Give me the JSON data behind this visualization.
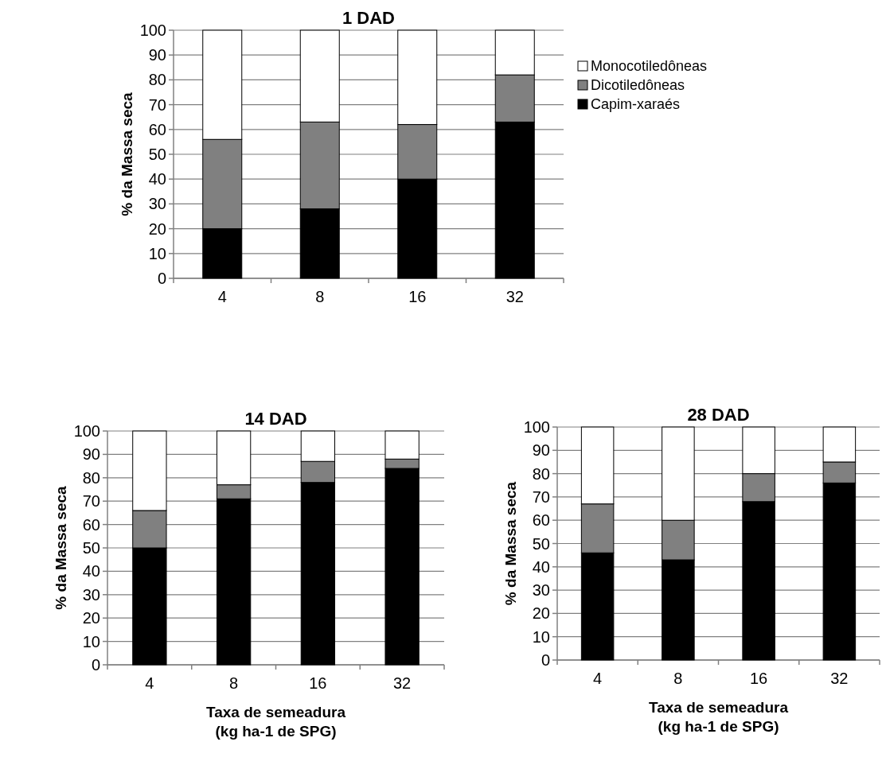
{
  "chart_data": [
    {
      "type": "bar",
      "stacked": true,
      "title": "1 DAD",
      "ylabel": "% da Massa seca",
      "categories": [
        "4",
        "8",
        "16",
        "32"
      ],
      "ylim": [
        0,
        100
      ],
      "yticks": [
        0,
        10,
        20,
        30,
        40,
        50,
        60,
        70,
        80,
        90,
        100
      ],
      "grid": "y",
      "legend": "right",
      "series": [
        {
          "name": "Capim-xaraés",
          "color": "#000000",
          "values": [
            20,
            28,
            40,
            63
          ]
        },
        {
          "name": "Dicotiledôneas",
          "color": "#808080",
          "values": [
            36,
            35,
            22,
            19
          ]
        },
        {
          "name": "Monocotiledôneas",
          "color": "#ffffff",
          "values": [
            44,
            37,
            38,
            18
          ]
        }
      ]
    },
    {
      "type": "bar",
      "stacked": true,
      "title": "14 DAD",
      "ylabel": "% da Massa seca",
      "xlabel": "Taxa de semeadura\n(kg ha-1 de SPG)",
      "categories": [
        "4",
        "8",
        "16",
        "32"
      ],
      "ylim": [
        0,
        100
      ],
      "yticks": [
        0,
        10,
        20,
        30,
        40,
        50,
        60,
        70,
        80,
        90,
        100
      ],
      "grid": "y",
      "series": [
        {
          "color": "#000000",
          "values": [
            50,
            71,
            78,
            84
          ]
        },
        {
          "color": "#808080",
          "values": [
            16,
            6,
            9,
            4
          ]
        },
        {
          "color": "#ffffff",
          "values": [
            34,
            23,
            13,
            12
          ]
        }
      ]
    },
    {
      "type": "bar",
      "stacked": true,
      "title": "28 DAD",
      "ylabel": "% da Massa seca",
      "xlabel": "Taxa de semeadura\n(kg ha-1 de SPG)",
      "categories": [
        "4",
        "8",
        "16",
        "32"
      ],
      "ylim": [
        0,
        100
      ],
      "yticks": [
        0,
        10,
        20,
        30,
        40,
        50,
        60,
        70,
        80,
        90,
        100
      ],
      "grid": "y",
      "series": [
        {
          "color": "#000000",
          "values": [
            46,
            43,
            68,
            76
          ]
        },
        {
          "color": "#808080",
          "values": [
            21,
            17,
            12,
            9
          ]
        },
        {
          "color": "#ffffff",
          "values": [
            33,
            40,
            20,
            15
          ]
        }
      ]
    }
  ]
}
